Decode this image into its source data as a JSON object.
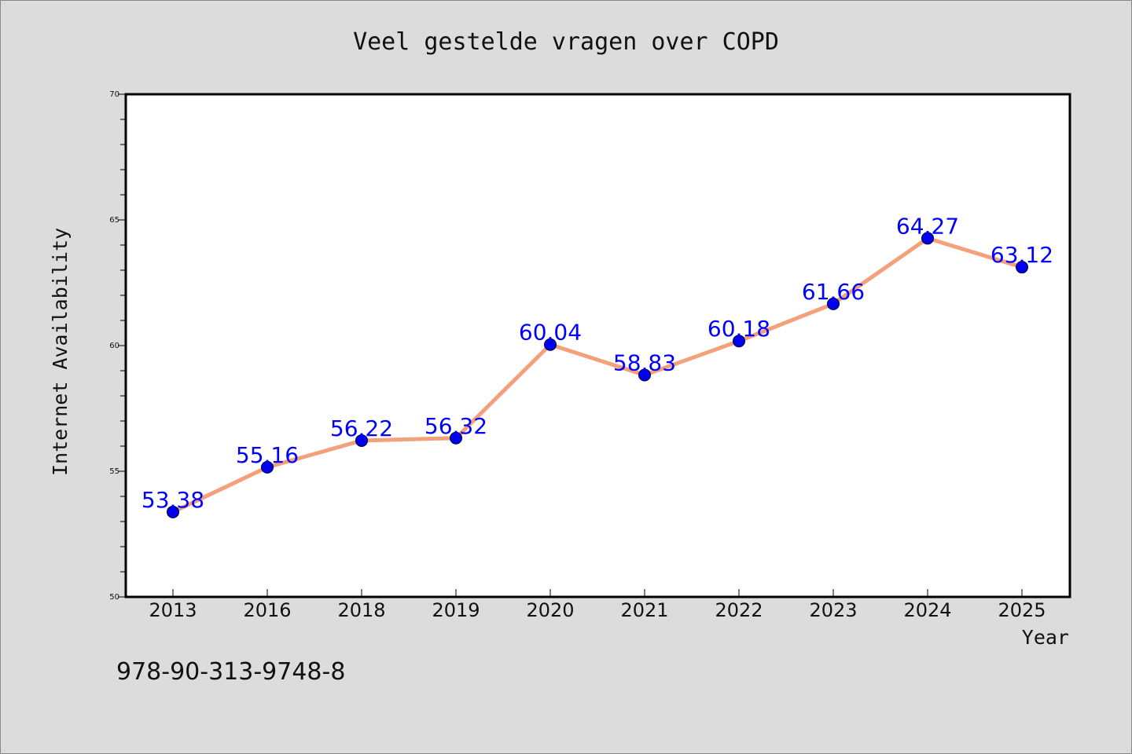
{
  "chart_data": {
    "type": "line",
    "title": "Veel gestelde vragen over COPD",
    "xlabel": "Year",
    "ylabel": "Internet Availability",
    "categories": [
      "2013",
      "2016",
      "2018",
      "2019",
      "2020",
      "2021",
      "2022",
      "2023",
      "2024",
      "2025"
    ],
    "series": [
      {
        "values": [
          53.38,
          55.16,
          56.22,
          56.32,
          60.04,
          58.83,
          60.18,
          61.66,
          64.27,
          63.12
        ],
        "labels": [
          "53.38",
          "55.16",
          "56.22",
          "56.32",
          "60.04",
          "58.83",
          "60.18",
          "61.66",
          "64.27",
          "63.12"
        ]
      }
    ],
    "ylim": [
      50,
      70
    ],
    "yticks": [
      "50",
      "55",
      "60",
      "65",
      "70"
    ],
    "grid": false,
    "legend": "none",
    "colors": {
      "line": "#f4a07a",
      "marker": "#0000ee",
      "data_label": "#0000ff",
      "background": "#dcdcdc",
      "plot_background": "#ffffff"
    }
  },
  "annotation": "978-90-313-9748-8"
}
